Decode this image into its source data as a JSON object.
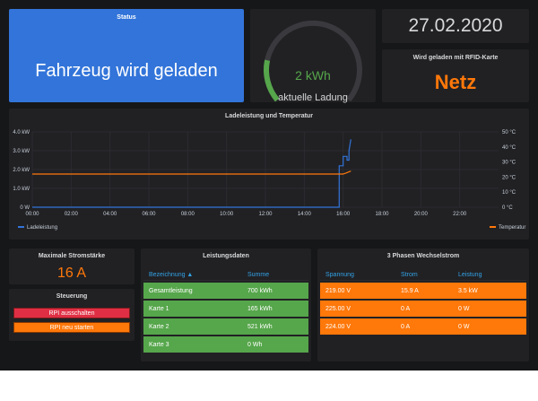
{
  "status": {
    "title": "Status",
    "value": "Fahrzeug wird geladen"
  },
  "gauge": {
    "value": "2 kWh",
    "label": "aktuelle Ladung",
    "fraction": 0.2,
    "color": "#56a64b"
  },
  "date": {
    "value": "27.02.2020"
  },
  "rfid": {
    "title": "Wird geladen mit RFID-Karte",
    "value": "Netz"
  },
  "chart": {
    "title": "Ladeleistung und Temperatur",
    "legend_left": "Ladeleistung",
    "legend_right": "Temperatur"
  },
  "chart_data": {
    "type": "line",
    "title": "Ladeleistung und Temperatur",
    "x_ticks": [
      "00:00",
      "02:00",
      "04:00",
      "06:00",
      "08:00",
      "10:00",
      "12:00",
      "14:00",
      "16:00",
      "18:00",
      "20:00",
      "22:00"
    ],
    "y_left_ticks": [
      "0 W",
      "1.0 kW",
      "2.0 kW",
      "3.0 kW",
      "4.0 kW"
    ],
    "y_right_ticks": [
      "0 °C",
      "10 °C",
      "20 °C",
      "30 °C",
      "40 °C",
      "50 °C"
    ],
    "y_left_range": [
      0,
      4000
    ],
    "y_right_range": [
      0,
      50
    ],
    "x_range_hours": [
      0,
      24
    ],
    "grid": true,
    "legend_placement": "bottom",
    "series": [
      {
        "name": "Ladeleistung",
        "axis": "left",
        "color": "#3274d9",
        "x_hours": [
          0,
          15.7,
          15.8,
          15.8,
          16.0,
          16.0,
          16.2,
          16.2,
          16.3,
          16.3,
          16.4
        ],
        "values": [
          0,
          0,
          0,
          2200,
          2200,
          2700,
          2700,
          2500,
          2500,
          3000,
          3600
        ]
      },
      {
        "name": "Temperatur",
        "axis": "right",
        "color": "#ff780a",
        "x_hours": [
          0,
          2,
          4,
          6,
          8,
          10,
          12,
          14,
          15.5,
          16.0,
          16.2,
          16.4
        ],
        "values": [
          22,
          22,
          22,
          22,
          22,
          22,
          22,
          22,
          22,
          22,
          23,
          24
        ]
      }
    ]
  },
  "maxcur": {
    "title": "Maximale Stromstärke",
    "value": "16 A"
  },
  "steuerung": {
    "title": "Steuerung",
    "off_label": "RPI ausschalten",
    "restart_label": "RPI neu starten"
  },
  "leistung": {
    "title": "Leistungsdaten",
    "headers": [
      "Bezeichnung ▲",
      "Summe"
    ],
    "rows": [
      [
        "Gesamtleistung",
        "700 kWh"
      ],
      [
        "Karte 1",
        "165 kWh"
      ],
      [
        "Karte 2",
        "521 kWh"
      ],
      [
        "Karte 3",
        "0 Wh"
      ]
    ]
  },
  "phasen": {
    "title": "3 Phasen Wechselstrom",
    "headers": [
      "Spannung",
      "Strom",
      "Leistung"
    ],
    "rows": [
      [
        "219.00 V",
        "15.9 A",
        "3.5 kW"
      ],
      [
        "225.00 V",
        "0 A",
        "0 W"
      ],
      [
        "224.00 V",
        "0 A",
        "0 W"
      ]
    ]
  }
}
